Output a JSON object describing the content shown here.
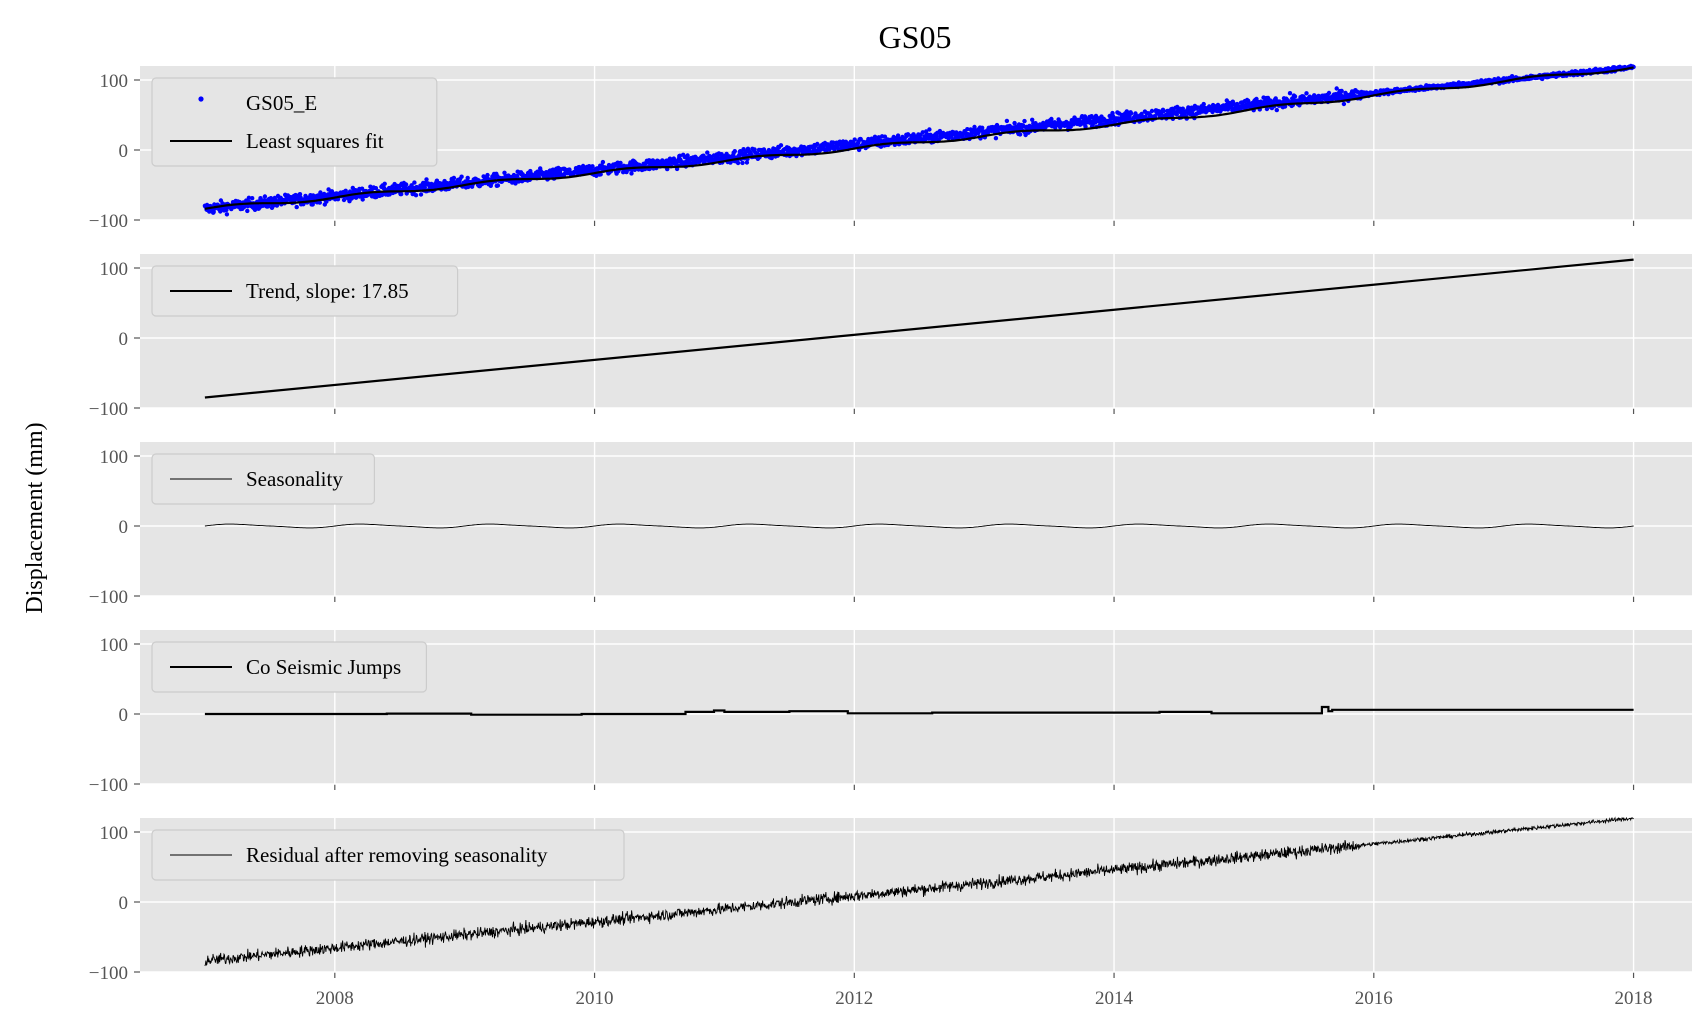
{
  "figure": {
    "title": "GS05",
    "ylabel": "Displacement (mm)"
  },
  "chart_data": {
    "type": "line",
    "title": "GS05",
    "ylabel": "Displacement (mm)",
    "xlabel": "",
    "xlim": [
      2006.5,
      2018.45
    ],
    "ylim": [
      -100,
      120
    ],
    "x_ticks": [
      "2008",
      "2010",
      "2012",
      "2014",
      "2016",
      "2018"
    ],
    "y_ticks": [
      "-100",
      "0",
      "100"
    ],
    "grid": true,
    "sharex": true,
    "legend_position": "upper-left",
    "colors": {
      "background": "#e5e5e5",
      "grid": "#ffffff",
      "points": "#0000ff",
      "line": "#000000"
    },
    "panels": [
      {
        "id": "observations",
        "series": [
          {
            "name": "GS05_E",
            "kind": "scatter",
            "color": "#0000ff",
            "x_start": 2007.0,
            "x_end": 2018.0,
            "start": -84,
            "end": 118,
            "noise": 6
          },
          {
            "name": "Least squares fit",
            "kind": "line",
            "color": "#000000",
            "x": [
              2007.0,
              2008.0,
              2009.0,
              2010.0,
              2011.0,
              2012.0,
              2013.0,
              2014.0,
              2015.0,
              2016.0,
              2017.0,
              2018.0
            ],
            "y": [
              -84,
              -68,
              -50,
              -33,
              -16,
              2,
              20,
              36,
              56,
              78,
              98,
              118
            ]
          }
        ]
      },
      {
        "id": "trend",
        "series": [
          {
            "name": "Trend, slope: 17.85",
            "kind": "line",
            "color": "#000000",
            "x": [
              2007.0,
              2018.0
            ],
            "y": [
              -85,
              112
            ]
          }
        ]
      },
      {
        "id": "seasonality",
        "series": [
          {
            "name": "Seasonality",
            "kind": "line",
            "color": "#000000",
            "amplitude": 2.5,
            "period_years": 1.0,
            "x_start": 2007.0,
            "x_end": 2018.0
          }
        ]
      },
      {
        "id": "jumps",
        "series": [
          {
            "name": "Co Seismic Jumps",
            "kind": "step",
            "color": "#000000",
            "x": [
              2007.0,
              2008.4,
              2009.05,
              2009.9,
              2010.7,
              2010.92,
              2011.0,
              2011.5,
              2011.95,
              2012.6,
              2014.35,
              2014.75,
              2015.6,
              2015.65,
              2015.68,
              2018.0
            ],
            "y": [
              0,
              0.5,
              -1,
              0,
              3,
              5,
              3,
              4,
              1,
              2,
              3,
              1,
              10,
              4,
              6,
              6
            ]
          }
        ]
      },
      {
        "id": "residual",
        "series": [
          {
            "name": "Residual after removing seasonality",
            "kind": "line",
            "color": "#000000",
            "x_start": 2007.0,
            "x_end": 2018.0,
            "start": -84,
            "end": 120,
            "noise": 6
          }
        ]
      }
    ]
  }
}
